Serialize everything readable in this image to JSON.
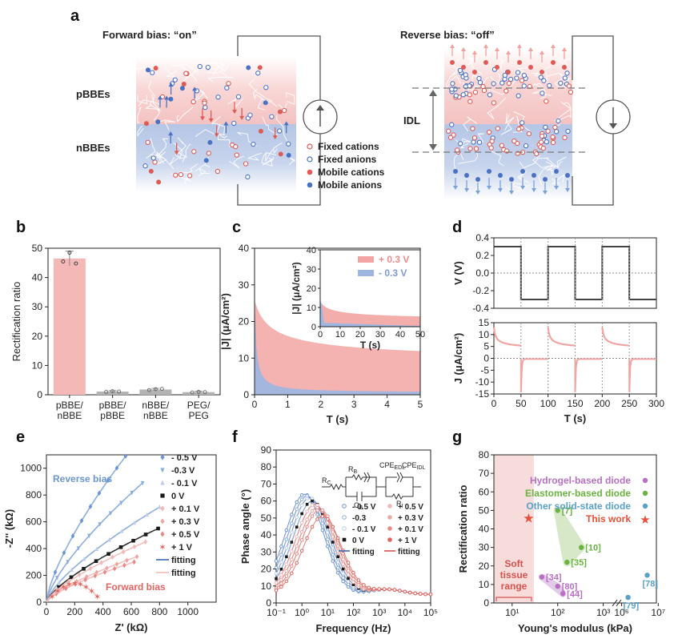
{
  "panel_labels": {
    "a": "a",
    "b": "b",
    "c": "c",
    "d": "d",
    "e": "e",
    "f": "f",
    "g": "g"
  },
  "panel_a": {
    "forward_title": "Forward bias: “on”",
    "reverse_title": "Reverse bias: “off”",
    "pbbe_label": "pBBEs",
    "nbbe_label": "nBBEs",
    "idl_label": "IDL",
    "legend": [
      "Fixed cations",
      "Fixed anions",
      "Mobile cations",
      "Mobile anions"
    ],
    "colors": {
      "cation": "#e05a55",
      "anion": "#4a72c4",
      "pink": "#f6c9c8",
      "blue": "#b9c8e6"
    }
  },
  "chart_data": [
    {
      "panel": "b",
      "type": "bar",
      "categories": [
        "pBBE/\nnBBE",
        "pBBE/\npBBE",
        "nBBE/\nnBBE",
        "PEG/\nPEG"
      ],
      "values": [
        46.5,
        1.1,
        1.8,
        0.9
      ],
      "errors": [
        2.5,
        0.3,
        0.4,
        0.3
      ],
      "points": [
        [
          45.5,
          48.5,
          44.8
        ],
        [
          1.0,
          1.2,
          1.1
        ],
        [
          1.6,
          1.9,
          2.0
        ],
        [
          0.8,
          1.0,
          0.9
        ]
      ],
      "ylabel": "Rectification ratio",
      "ylim": [
        0,
        50
      ],
      "yticks": [
        0,
        10,
        20,
        30,
        40,
        50
      ],
      "colors": [
        "#f4b9b7",
        "#b3b3b3",
        "#b3b3b3",
        "#b3b3b3"
      ]
    },
    {
      "panel": "c",
      "type": "area",
      "xlabel": "T (s)",
      "ylabel": "|J| (μA/cm²)",
      "xlim": [
        0,
        5
      ],
      "ylim": [
        0,
        40
      ],
      "xticks": [
        0,
        1,
        2,
        3,
        4,
        5
      ],
      "yticks": [
        0,
        10,
        20,
        30,
        40
      ],
      "series": [
        {
          "name": "+ 0.3 V",
          "color": "#f2a5a2"
        },
        {
          "name": "- 0.3 V",
          "color": "#9fb6e0"
        }
      ],
      "inset": {
        "xlabel": "T (s)",
        "ylabel": "|J| (μA/cm²)",
        "xlim": [
          0,
          50
        ],
        "ylim": [
          0,
          40
        ],
        "xticks": [
          0,
          10,
          20,
          30,
          40,
          50
        ],
        "yticks": [
          0,
          10,
          20,
          30,
          40
        ]
      }
    },
    {
      "panel": "d",
      "type": "line",
      "top": {
        "ylabel": "V (V)",
        "ylim": [
          -0.4,
          0.4
        ],
        "yticks": [
          "0.4",
          "0.2",
          "0.0",
          "-0.2",
          "-0.4"
        ],
        "high": 0.3,
        "low": -0.3,
        "period": 100
      },
      "bottom": {
        "ylabel": "J (μA/cm²)",
        "ylim": [
          -15,
          15
        ],
        "yticks": [
          "15",
          "10",
          "5",
          "0",
          "-5",
          "-10",
          "-15"
        ]
      },
      "xlabel": "T (s)",
      "xlim": [
        0,
        300
      ],
      "xticks": [
        0,
        50,
        100,
        150,
        200,
        250,
        300
      ]
    },
    {
      "panel": "e",
      "type": "scatter",
      "xlabel": "Z' (kΩ)",
      "ylabel": "-Z'' (kΩ)",
      "xlim": [
        0,
        1200
      ],
      "ylim": [
        0,
        1100
      ],
      "xticks": [
        0,
        200,
        400,
        600,
        800,
        1000
      ],
      "yticks": [
        0,
        200,
        400,
        600,
        800,
        1000
      ],
      "series": [
        {
          "name": "- 0.5 V",
          "color": "#6b96d1",
          "marker": "diamond",
          "end": [
            560,
            1090
          ]
        },
        {
          "name": "-0.3 V",
          "color": "#8aaedc",
          "marker": "tri-down",
          "end": [
            680,
            890
          ]
        },
        {
          "name": "- 0.1 V",
          "color": "#bccde9",
          "marker": "tri-up",
          "end": [
            800,
            710
          ]
        },
        {
          "name": "0 V",
          "color": "#1a1a1a",
          "marker": "square",
          "end": [
            790,
            550
          ]
        },
        {
          "name": "+ 0.1 V",
          "color": "#f1b8b6",
          "marker": "diamond",
          "end": [
            700,
            450
          ]
        },
        {
          "name": "+ 0.3 V",
          "color": "#eca7a4",
          "marker": "diamond",
          "end": [
            640,
            340
          ]
        },
        {
          "name": "+ 0.5 V",
          "color": "#e58a87",
          "marker": "diamond",
          "end": [
            620,
            300
          ]
        },
        {
          "name": "+ 1 V",
          "color": "#e06560",
          "marker": "star",
          "end": [
            360,
            140
          ]
        }
      ],
      "fit_labels": [
        "fitting",
        "fitting"
      ],
      "fit_colors": [
        "#3a66b3",
        "#f1b8b6"
      ],
      "annotations": {
        "reverse": "Reverse bias",
        "forward": "Forward bias"
      }
    },
    {
      "panel": "f",
      "type": "scatter",
      "xlabel": "Frequency (Hz)",
      "ylabel": "Phase angle (°)",
      "xlim": [
        "10^-1",
        "10^5"
      ],
      "ylim": [
        0,
        90
      ],
      "yticks": [
        0,
        10,
        20,
        30,
        40,
        50,
        60,
        70,
        80,
        90
      ],
      "xticks": [
        "10⁻¹",
        "10⁰",
        "10¹",
        "10²",
        "10³",
        "10⁴",
        "10⁵"
      ],
      "series": [
        {
          "name": "- 0.5 V",
          "color": "#6b96d1",
          "peak": 64
        },
        {
          "name": "-0.3",
          "color": "#8aaedc",
          "peak": 63
        },
        {
          "name": "- 0.1 V",
          "color": "#bccde9",
          "peak": 62
        },
        {
          "name": "0 V",
          "color": "#1a1a1a",
          "peak": 60
        },
        {
          "name": "+ 0.5 V",
          "color": "#f1b8b6",
          "peak": 58
        },
        {
          "name": "+ 0.3 V",
          "color": "#eca7a4",
          "peak": 56
        },
        {
          "name": "+ 0.1 V",
          "color": "#e58a87",
          "peak": 55
        },
        {
          "name": "+ 1 V",
          "color": "#e06560",
          "peak": 51
        }
      ],
      "fit_labels": [
        "fitting",
        "fitting"
      ],
      "fit_colors": [
        "#3a66b3",
        "#d9534f"
      ],
      "circuit_labels": [
        "R",
        "C",
        "CPE",
        "C",
        "CPE",
        "R"
      ],
      "circuit_subs": [
        "B",
        "EDL",
        "B",
        "IDL",
        "C",
        "I"
      ]
    },
    {
      "panel": "g",
      "type": "scatter",
      "xlabel": "Young's modulus (kPa)",
      "ylabel": "Rectification ratio",
      "ylim": [
        0,
        80
      ],
      "yticks": [
        0,
        10,
        20,
        30,
        40,
        50,
        60,
        70,
        80
      ],
      "xticks": [
        "10¹",
        "10²",
        "10³",
        "10⁶",
        "10⁷"
      ],
      "legend": [
        {
          "name": "Hydrogel-based diode",
          "color": "#b86fc4"
        },
        {
          "name": "Elastomer-based diode",
          "color": "#6bb33f"
        },
        {
          "name": "Other solid-state diode",
          "color": "#5aa0c8"
        },
        {
          "name": "This work",
          "color": "#e8503a"
        }
      ],
      "shaded_label": "Soft\ntissue\nrange",
      "points": [
        {
          "label": "[7]",
          "x": 100,
          "y": 50,
          "group": "Elastomer-based diode"
        },
        {
          "label": "[10]",
          "x": 330,
          "y": 30,
          "group": "Elastomer-based diode"
        },
        {
          "label": "[35]",
          "x": 160,
          "y": 22,
          "group": "Elastomer-based diode"
        },
        {
          "label": "[34]",
          "x": 45,
          "y": 14,
          "group": "Hydrogel-based diode"
        },
        {
          "label": "[80]",
          "x": 100,
          "y": 9,
          "group": "Hydrogel-based diode"
        },
        {
          "label": "[44]",
          "x": 130,
          "y": 5,
          "group": "Hydrogel-based diode"
        },
        {
          "label": "[78]",
          "x": 5000000,
          "y": 15,
          "group": "Other solid-state diode"
        },
        {
          "label": "[79]",
          "x": 1500000,
          "y": 3,
          "group": "Other solid-state diode"
        },
        {
          "label": "",
          "x": 23,
          "y": 46,
          "group": "This work"
        }
      ]
    }
  ]
}
